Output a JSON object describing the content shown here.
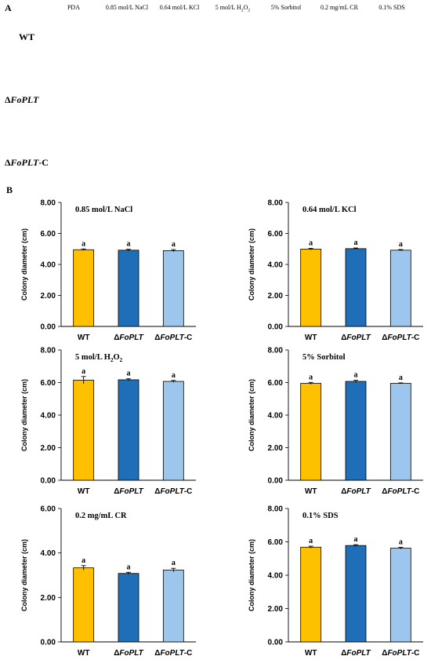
{
  "panel_a": {
    "label": "A",
    "columns": [
      "PDA",
      "0.85 mol/L NaCl",
      "0.64 mol/L KCl",
      "5 mol/L H2O2",
      "5% Sorbitol",
      "0.2 mg/mL CR",
      "0.1% SDS"
    ],
    "rows": [
      {
        "prefix": "",
        "name": "WT",
        "suffix": ""
      },
      {
        "prefix": "Δ",
        "name": "FoPLT",
        "suffix": ""
      },
      {
        "prefix": "Δ",
        "name": "FoPLT",
        "suffix": "-C"
      }
    ],
    "plates": [
      [
        {
          "agar": "#a7a6a3",
          "colony": "#dcd5d2",
          "r": 0.86,
          "tint": "#e8c9c9",
          "clear": 0
        },
        {
          "agar": "#a9a9a6",
          "colony": "#e3e1cf",
          "r": 0.42,
          "tint": "#d6d3b8",
          "clear": 0
        },
        {
          "agar": "#a5a6a5",
          "colony": "#ecebe0",
          "r": 0.44,
          "tint": "#dcdcd0",
          "clear": 0
        },
        {
          "agar": "#a2a5a0",
          "colony": "#d9dcd0",
          "r": 0.55,
          "tint": "#7f9070",
          "clear": 0
        },
        {
          "agar": "#a7a7a7",
          "colony": "#e5e2df",
          "r": 0.58,
          "tint": "#e2cfcf",
          "clear": 0
        },
        {
          "agar": "#7a1612",
          "colony": "#ffffff",
          "r": 0.38,
          "tint": "#ffffff",
          "clear": 1
        },
        {
          "agar": "#a9a8a6",
          "colony": "#e6e3e0",
          "r": 0.55,
          "tint": "#e8d0d0",
          "clear": 0
        }
      ],
      [
        {
          "agar": "#a8a4a4",
          "colony": "#e5d3d5",
          "r": 0.86,
          "tint": "#e9b7bd",
          "clear": 0
        },
        {
          "agar": "#a9a9a6",
          "colony": "#e1e0d3",
          "r": 0.46,
          "tint": "#d2cfbb",
          "clear": 0
        },
        {
          "agar": "#a5a6a5",
          "colony": "#e6e6dc",
          "r": 0.46,
          "tint": "#d2d2c6",
          "clear": 0
        },
        {
          "agar": "#a5a7a3",
          "colony": "#e1e2da",
          "r": 0.6,
          "tint": "#c7c9bb",
          "clear": 0
        },
        {
          "agar": "#a7a7a7",
          "colony": "#ddd8d5",
          "r": 0.62,
          "tint": "#d7c4c4",
          "clear": 0
        },
        {
          "agar": "#7a1612",
          "colony": "#ffffff",
          "r": 0.3,
          "tint": "#ffffff",
          "clear": 1
        },
        {
          "agar": "#a9a8a6",
          "colony": "#e7e2df",
          "r": 0.66,
          "tint": "#dfc8c8",
          "clear": 0
        }
      ],
      [
        {
          "agar": "#a7a6a3",
          "colony": "#dad2d2",
          "r": 0.86,
          "tint": "#e5c5c5",
          "clear": 0
        },
        {
          "agar": "#a9a9a6",
          "colony": "#e3e1cf",
          "r": 0.46,
          "tint": "#d9d6bf",
          "clear": 0
        },
        {
          "agar": "#a5a6a5",
          "colony": "#ecebe0",
          "r": 0.46,
          "tint": "#dcdcd0",
          "clear": 0
        },
        {
          "agar": "#a2a5a0",
          "colony": "#d8dbcf",
          "r": 0.55,
          "tint": "#788a66",
          "clear": 0
        },
        {
          "agar": "#a7a7a7",
          "colony": "#e2dcd9",
          "r": 0.58,
          "tint": "#e6bcbc",
          "clear": 0
        },
        {
          "agar": "#7a1612",
          "colony": "#ffffff",
          "r": 0.34,
          "tint": "#ffffff",
          "clear": 1
        },
        {
          "agar": "#a9a8a6",
          "colony": "#e4e0dd",
          "r": 0.6,
          "tint": "#e8c6c6",
          "clear": 0
        }
      ]
    ]
  },
  "panel_b": {
    "label": "B",
    "ylabel": "Colony diameter (cm)",
    "categories": [
      {
        "prefix": "",
        "name": "WT",
        "suffix": ""
      },
      {
        "prefix": "Δ",
        "name": "FoPLT",
        "suffix": ""
      },
      {
        "prefix": "Δ",
        "name": "FoPLT",
        "suffix": "-C"
      }
    ],
    "colors": {
      "WT": "#ffc000",
      "FoPLT": "#1f6fb8",
      "FoPLT-C": "#9dc6ec",
      "axis": "#000000"
    }
  },
  "chart_data": [
    {
      "type": "bar",
      "title": "0.85 mol/L NaCl",
      "categories": [
        "WT",
        "ΔFoPLT",
        "ΔFoPLT-C"
      ],
      "values": [
        4.95,
        4.92,
        4.89
      ],
      "errors": [
        0.05,
        0.06,
        0.07
      ],
      "significance": [
        "a",
        "a",
        "a"
      ],
      "ylabel": "Colony diameter (cm)",
      "ylim": [
        0,
        8
      ],
      "yticks": [
        "0.00",
        "2.00",
        "4.00",
        "6.00",
        "8.00"
      ]
    },
    {
      "type": "bar",
      "title": "0.64 mol/L KCl",
      "categories": [
        "WT",
        "ΔFoPLT",
        "ΔFoPLT-C"
      ],
      "values": [
        4.99,
        5.02,
        4.92
      ],
      "errors": [
        0.05,
        0.04,
        0.04
      ],
      "significance": [
        "a",
        "a",
        "a"
      ],
      "ylabel": "Colony diameter (cm)",
      "ylim": [
        0,
        8
      ],
      "yticks": [
        "0.00",
        "2.00",
        "4.00",
        "6.00",
        "8.00"
      ]
    },
    {
      "type": "bar",
      "title": "5 mol/L H2O2",
      "categories": [
        "WT",
        "ΔFoPLT",
        "ΔFoPLT-C"
      ],
      "values": [
        6.15,
        6.17,
        6.07
      ],
      "errors": [
        0.22,
        0.06,
        0.06
      ],
      "significance": [
        "a",
        "a",
        "a"
      ],
      "ylabel": "Colony diameter (cm)",
      "ylim": [
        0,
        8
      ],
      "yticks": [
        "0.00",
        "2.00",
        "4.00",
        "6.00",
        "8.00"
      ]
    },
    {
      "type": "bar",
      "title": "5% Sorbitol",
      "categories": [
        "WT",
        "ΔFoPLT",
        "ΔFoPLT-C"
      ],
      "values": [
        5.95,
        6.07,
        5.95
      ],
      "errors": [
        0.06,
        0.07,
        0.03
      ],
      "significance": [
        "a",
        "a",
        "a"
      ],
      "ylabel": "Colony diameter (cm)",
      "ylim": [
        0,
        8
      ],
      "yticks": [
        "0.00",
        "2.00",
        "4.00",
        "6.00",
        "8.00"
      ]
    },
    {
      "type": "bar",
      "title": "0.2 mg/mL CR",
      "categories": [
        "WT",
        "ΔFoPLT",
        "ΔFoPLT-C"
      ],
      "values": [
        3.33,
        3.08,
        3.23
      ],
      "errors": [
        0.1,
        0.05,
        0.08
      ],
      "significance": [
        "a",
        "a",
        "a"
      ],
      "ylabel": "Colony diameter (cm)",
      "ylim": [
        0,
        6
      ],
      "yticks": [
        "0.00",
        "2.00",
        "4.00",
        "6.00"
      ]
    },
    {
      "type": "bar",
      "title": "0.1% SDS",
      "categories": [
        "WT",
        "ΔFoPLT",
        "ΔFoPLT-C"
      ],
      "values": [
        5.68,
        5.78,
        5.62
      ],
      "errors": [
        0.06,
        0.05,
        0.05
      ],
      "significance": [
        "a",
        "a",
        "a"
      ],
      "ylabel": "Colony diameter (cm)",
      "ylim": [
        0,
        8
      ],
      "yticks": [
        "0.00",
        "2.00",
        "4.00",
        "6.00",
        "8.00"
      ]
    }
  ]
}
